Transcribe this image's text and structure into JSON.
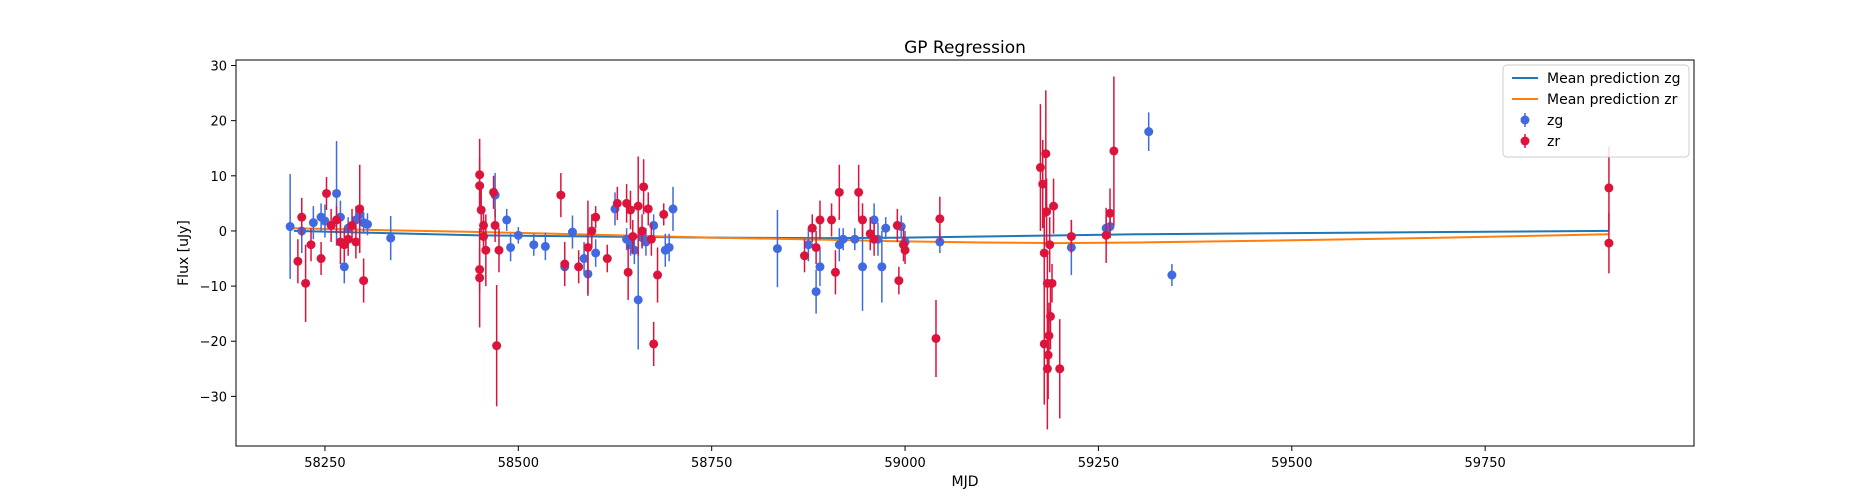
{
  "chart_data": {
    "type": "scatter",
    "title": "GP Regression",
    "xlabel": "MJD",
    "ylabel": "Flux [uJy]",
    "xlim": [
      58135,
      60020
    ],
    "ylim": [
      -39,
      31
    ],
    "xticks": [
      58250,
      58500,
      58750,
      59000,
      59250,
      59500,
      59750
    ],
    "yticks": [
      -30,
      -20,
      -10,
      0,
      10,
      20,
      30
    ],
    "grid": false,
    "legend_position": "top-right",
    "legend": [
      "Mean prediction zg",
      "Mean prediction zr",
      "zg",
      "zr"
    ],
    "colors": {
      "zg_points": "#4169E1",
      "zr_points": "#DC143C",
      "zg_mean": "#1f77b4",
      "zr_mean": "#ff7f0e"
    },
    "mean_lines": [
      {
        "name": "Mean prediction zg",
        "color": "#1f77b4",
        "points": [
          [
            58210,
            0
          ],
          [
            58300,
            -0.3
          ],
          [
            58450,
            -0.8
          ],
          [
            58600,
            -1.0
          ],
          [
            58750,
            -1.2
          ],
          [
            58900,
            -1.3
          ],
          [
            59000,
            -1.2
          ],
          [
            59100,
            -1.0
          ],
          [
            59200,
            -0.8
          ],
          [
            59300,
            -0.6
          ],
          [
            59500,
            -0.4
          ],
          [
            59700,
            -0.2
          ],
          [
            59910,
            0
          ]
        ]
      },
      {
        "name": "Mean prediction zr",
        "color": "#ff7f0e",
        "points": [
          [
            58210,
            0.5
          ],
          [
            58300,
            0.2
          ],
          [
            58450,
            -0.2
          ],
          [
            58600,
            -0.7
          ],
          [
            58750,
            -1.2
          ],
          [
            58900,
            -1.6
          ],
          [
            59000,
            -1.9
          ],
          [
            59100,
            -2.1
          ],
          [
            59200,
            -2.2
          ],
          [
            59300,
            -2.1
          ],
          [
            59500,
            -1.7
          ],
          [
            59700,
            -1.2
          ],
          [
            59910,
            -0.6
          ]
        ]
      }
    ],
    "series": [
      {
        "name": "zg",
        "color": "#4169E1",
        "points": [
          [
            58205,
            0.8,
            9.5
          ],
          [
            58220,
            0,
            4
          ],
          [
            58235,
            1.5,
            3
          ],
          [
            58245,
            2.5,
            2.5
          ],
          [
            58250,
            1.8,
            3
          ],
          [
            58265,
            6.8,
            9.5
          ],
          [
            58270,
            2.5,
            3
          ],
          [
            58275,
            -6.5,
            3
          ],
          [
            58280,
            0.5,
            2
          ],
          [
            58290,
            2,
            2.5
          ],
          [
            58295,
            3,
            2
          ],
          [
            58300,
            1.5,
            2
          ],
          [
            58305,
            1.2,
            2
          ],
          [
            58335,
            -1.3,
            4
          ],
          [
            58470,
            6.5,
            4
          ],
          [
            58485,
            2,
            2
          ],
          [
            58490,
            -3,
            2.5
          ],
          [
            58500,
            -0.8,
            1.5
          ],
          [
            58520,
            -2.5,
            2
          ],
          [
            58535,
            -2.8,
            2.5
          ],
          [
            58560,
            -6.5,
            3
          ],
          [
            58570,
            -0.2,
            3
          ],
          [
            58585,
            -5,
            3
          ],
          [
            58590,
            -7.8,
            4
          ],
          [
            58600,
            -4,
            2.5
          ],
          [
            58625,
            4,
            3
          ],
          [
            58640,
            -1.5,
            2
          ],
          [
            58645,
            -2.5,
            2
          ],
          [
            58650,
            -3.5,
            2.5
          ],
          [
            58655,
            -12.5,
            9
          ],
          [
            58660,
            -1.2,
            2
          ],
          [
            58665,
            -2,
            2.5
          ],
          [
            58675,
            1,
            2
          ],
          [
            58690,
            -3.5,
            3
          ],
          [
            58695,
            -3,
            2.5
          ],
          [
            58700,
            4,
            4
          ],
          [
            58835,
            -3.2,
            7
          ],
          [
            58875,
            -2.5,
            3
          ],
          [
            58880,
            0.5,
            1.5
          ],
          [
            58885,
            -11,
            4
          ],
          [
            58890,
            -6.5,
            3.5
          ],
          [
            58915,
            -2.5,
            3
          ],
          [
            58920,
            -1.5,
            2
          ],
          [
            58935,
            -1.5,
            2
          ],
          [
            58945,
            -6.5,
            8
          ],
          [
            58960,
            2,
            3
          ],
          [
            58965,
            -1.5,
            3
          ],
          [
            58970,
            -6.5,
            6.5
          ],
          [
            58975,
            0.5,
            2
          ],
          [
            58995,
            0.8,
            2
          ],
          [
            59000,
            -2,
            2
          ],
          [
            59045,
            -2,
            2
          ],
          [
            59215,
            -3,
            5
          ],
          [
            59260,
            0.5,
            2
          ],
          [
            59265,
            0.8,
            2
          ],
          [
            59315,
            18,
            3.5
          ],
          [
            59345,
            -8,
            2
          ]
        ]
      },
      {
        "name": "zr",
        "color": "#DC143C",
        "points": [
          [
            58215,
            -5.5,
            4
          ],
          [
            58220,
            2.5,
            3.5
          ],
          [
            58225,
            -9.5,
            7
          ],
          [
            58232,
            -2.5,
            3
          ],
          [
            58245,
            -5,
            3
          ],
          [
            58252,
            6.8,
            3
          ],
          [
            58258,
            1,
            3
          ],
          [
            58265,
            2,
            2.5
          ],
          [
            58270,
            -2,
            4
          ],
          [
            58275,
            -2.5,
            3
          ],
          [
            58280,
            -1.5,
            3
          ],
          [
            58285,
            1,
            3
          ],
          [
            58290,
            -2,
            3
          ],
          [
            58295,
            4,
            8
          ],
          [
            58300,
            -9,
            4
          ],
          [
            58450,
            10.2,
            6.5
          ],
          [
            58450,
            8.2,
            5
          ],
          [
            58452,
            3.8,
            4
          ],
          [
            58455,
            1,
            3
          ],
          [
            58455,
            -1,
            3
          ],
          [
            58450,
            -7,
            4
          ],
          [
            58450,
            -8.5,
            9
          ],
          [
            58458,
            -3.5,
            6.5
          ],
          [
            58468,
            7,
            3
          ],
          [
            58470,
            1,
            3
          ],
          [
            58472,
            -20.8,
            11
          ],
          [
            58475,
            -3.5,
            4
          ],
          [
            58555,
            6.5,
            4
          ],
          [
            58560,
            -6,
            4
          ],
          [
            58578,
            -6.5,
            3
          ],
          [
            58590,
            -3,
            8.5
          ],
          [
            58595,
            0,
            3
          ],
          [
            58600,
            2.5,
            2
          ],
          [
            58615,
            -5,
            2.5
          ],
          [
            58628,
            5,
            3
          ],
          [
            58640,
            5,
            3.5
          ],
          [
            58642,
            -7.5,
            5
          ],
          [
            58645,
            3.8,
            3.5
          ],
          [
            58648,
            -1,
            3
          ],
          [
            58655,
            4.5,
            9
          ],
          [
            58660,
            0,
            3
          ],
          [
            58662,
            8,
            5
          ],
          [
            58668,
            4,
            3
          ],
          [
            58672,
            -1.5,
            3
          ],
          [
            58675,
            -20.5,
            4
          ],
          [
            58680,
            -8,
            5
          ],
          [
            58688,
            3,
            2
          ],
          [
            58870,
            -4.5,
            3
          ],
          [
            58880,
            0.5,
            2.5
          ],
          [
            58885,
            -3,
            3
          ],
          [
            58890,
            2,
            3.5
          ],
          [
            58905,
            2,
            3
          ],
          [
            58910,
            -7.5,
            4
          ],
          [
            58915,
            7,
            5
          ],
          [
            58940,
            7,
            5
          ],
          [
            58945,
            2,
            3
          ],
          [
            58955,
            -0.5,
            3
          ],
          [
            58960,
            -1.5,
            3
          ],
          [
            58990,
            1,
            3
          ],
          [
            58992,
            -9,
            2.5
          ],
          [
            58998,
            -2.5,
            3
          ],
          [
            59000,
            -3.5,
            2.5
          ],
          [
            59040,
            -19.5,
            7
          ],
          [
            59045,
            2.2,
            4
          ],
          [
            59175,
            11.5,
            11.5
          ],
          [
            59178,
            8.5,
            8
          ],
          [
            59180,
            -4,
            7
          ],
          [
            59180,
            -20.5,
            11
          ],
          [
            59182,
            14,
            11.5
          ],
          [
            59183,
            3.5,
            6
          ],
          [
            59184,
            -9.5,
            5
          ],
          [
            59184,
            -25,
            11
          ],
          [
            59185,
            -22.5,
            8
          ],
          [
            59186,
            -19,
            6
          ],
          [
            59187,
            -2.5,
            5
          ],
          [
            59188,
            -15.5,
            6
          ],
          [
            59190,
            -9.5,
            3.5
          ],
          [
            59192,
            4.5,
            5
          ],
          [
            59200,
            -25,
            9
          ],
          [
            59215,
            -1,
            3
          ],
          [
            59260,
            -0.8,
            5
          ],
          [
            59265,
            3.2,
            4.5
          ],
          [
            59270,
            14.5,
            13.5
          ],
          [
            59910,
            7.8,
            7.5
          ],
          [
            59910,
            -2.2,
            5.5
          ]
        ]
      }
    ]
  }
}
